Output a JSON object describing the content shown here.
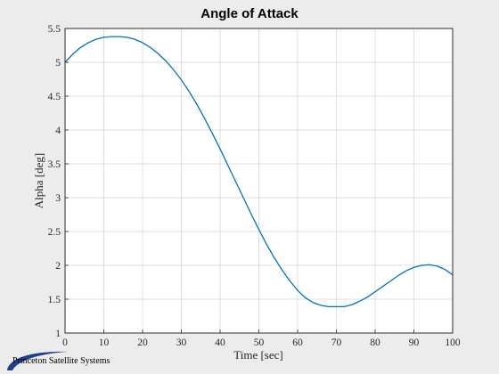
{
  "chart_data": {
    "type": "line",
    "title": "Angle of Attack",
    "xlabel": "Time [sec]",
    "ylabel": "Alpha [deg]",
    "xlim": [
      0,
      100
    ],
    "ylim": [
      1,
      5.5
    ],
    "xticks": [
      "0",
      "10",
      "20",
      "30",
      "40",
      "50",
      "60",
      "70",
      "80",
      "90",
      "100"
    ],
    "yticks": [
      "1",
      "1.5",
      "2",
      "2.5",
      "3",
      "3.5",
      "4",
      "4.5",
      "5",
      "5.5"
    ],
    "grid": true,
    "series": [
      {
        "color": "#0072bd",
        "x": [
          0,
          2,
          4,
          6,
          8,
          10,
          12,
          14,
          16,
          18,
          20,
          22,
          24,
          26,
          28,
          30,
          32,
          34,
          36,
          38,
          40,
          42,
          44,
          46,
          48,
          50,
          52,
          54,
          56,
          58,
          60,
          62,
          64,
          66,
          68,
          70,
          72,
          74,
          76,
          78,
          80,
          82,
          84,
          86,
          88,
          90,
          92,
          94,
          96,
          98,
          100
        ],
        "y": [
          5.0,
          5.12,
          5.22,
          5.29,
          5.34,
          5.37,
          5.38,
          5.38,
          5.37,
          5.34,
          5.29,
          5.22,
          5.13,
          5.02,
          4.89,
          4.74,
          4.57,
          4.38,
          4.17,
          3.95,
          3.72,
          3.48,
          3.24,
          3.0,
          2.76,
          2.53,
          2.31,
          2.11,
          1.93,
          1.77,
          1.63,
          1.52,
          1.45,
          1.41,
          1.39,
          1.39,
          1.39,
          1.42,
          1.47,
          1.53,
          1.61,
          1.69,
          1.77,
          1.85,
          1.92,
          1.97,
          2.0,
          2.01,
          1.99,
          1.94,
          1.86
        ]
      }
    ]
  },
  "logo": {
    "text": "Princeton Satellite Systems",
    "color": "#1f3f8f"
  }
}
